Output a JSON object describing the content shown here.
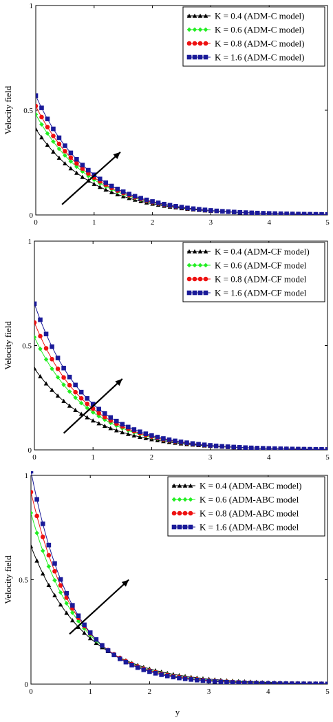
{
  "figure": {
    "xlabel": "y"
  },
  "chart_data": [
    {
      "type": "line",
      "ylabel": "Velocity field",
      "xlim": [
        0,
        5
      ],
      "ylim": [
        0,
        1
      ],
      "xticks": [
        "0",
        "1",
        "2",
        "3",
        "4",
        "5"
      ],
      "yticks": [
        "0",
        "0.5",
        "1"
      ],
      "grid": false,
      "legend_position": "top-right",
      "arrow": {
        "from": [
          0.45,
          0.05
        ],
        "to": [
          1.45,
          0.3
        ]
      },
      "series": [
        {
          "name": "K = 0.4  (ADM-C model)",
          "color": "#000000",
          "marker": "triangle",
          "start": 0.41,
          "decay": 1.02
        },
        {
          "name": "K = 0.6  (ADM-C model)",
          "color": "#22ee22",
          "marker": "diamond",
          "start": 0.48,
          "decay": 1.05
        },
        {
          "name": "K = 0.8  (ADM-C model)",
          "color": "#ee1111",
          "marker": "circle",
          "start": 0.52,
          "decay": 1.07
        },
        {
          "name": "K = 1.6  (ADM-C model)",
          "color": "#1a1a99",
          "marker": "square",
          "start": 0.57,
          "decay": 1.09
        }
      ]
    },
    {
      "type": "line",
      "ylabel": "Velocity field",
      "xlim": [
        0,
        5
      ],
      "ylim": [
        0,
        1
      ],
      "xticks": [
        "0",
        "1",
        "2",
        "3",
        "4",
        "5"
      ],
      "yticks": [
        "0",
        "0.5",
        "1"
      ],
      "grid": false,
      "legend_position": "top-right",
      "arrow": {
        "from": [
          0.5,
          0.08
        ],
        "to": [
          1.5,
          0.34
        ]
      },
      "series": [
        {
          "name": "K = 0.4  (ADM-CF model)",
          "color": "#000000",
          "marker": "triangle",
          "start": 0.39,
          "decay": 1.02
        },
        {
          "name": "K = 0.6  (ADM-CF model",
          "color": "#22ee22",
          "marker": "diamond",
          "start": 0.54,
          "decay": 1.1
        },
        {
          "name": "K = 0.8  (ADM-CF model",
          "color": "#ee1111",
          "marker": "circle",
          "start": 0.61,
          "decay": 1.13
        },
        {
          "name": "K = 1.6  (ADM-CF model",
          "color": "#1a1a99",
          "marker": "square",
          "start": 0.7,
          "decay": 1.16
        }
      ]
    },
    {
      "type": "line",
      "ylabel": "Velocity field",
      "xlim": [
        0,
        5
      ],
      "ylim": [
        0,
        1
      ],
      "xticks": [
        "0",
        "1",
        "2",
        "3",
        "4",
        "5"
      ],
      "yticks": [
        "0",
        "0.5",
        "1"
      ],
      "grid": false,
      "legend_position": "top-right",
      "arrow": {
        "from": [
          0.65,
          0.24
        ],
        "to": [
          1.65,
          0.5
        ]
      },
      "series": [
        {
          "name": "K = 0.4 (ADM-ABC model)",
          "color": "#000000",
          "marker": "triangle",
          "start": 0.66,
          "decay": 1.1
        },
        {
          "name": "K = 0.6 (ADM-ABC model",
          "color": "#22ee22",
          "marker": "diamond",
          "start": 0.82,
          "decay": 1.25
        },
        {
          "name": "K = 0.8 (ADM-ABC model",
          "color": "#ee1111",
          "marker": "circle",
          "start": 0.92,
          "decay": 1.33
        },
        {
          "name": "K = 1.6 (ADM-ABC model",
          "color": "#1a1a99",
          "marker": "square",
          "start": 1.02,
          "decay": 1.42
        }
      ]
    }
  ]
}
